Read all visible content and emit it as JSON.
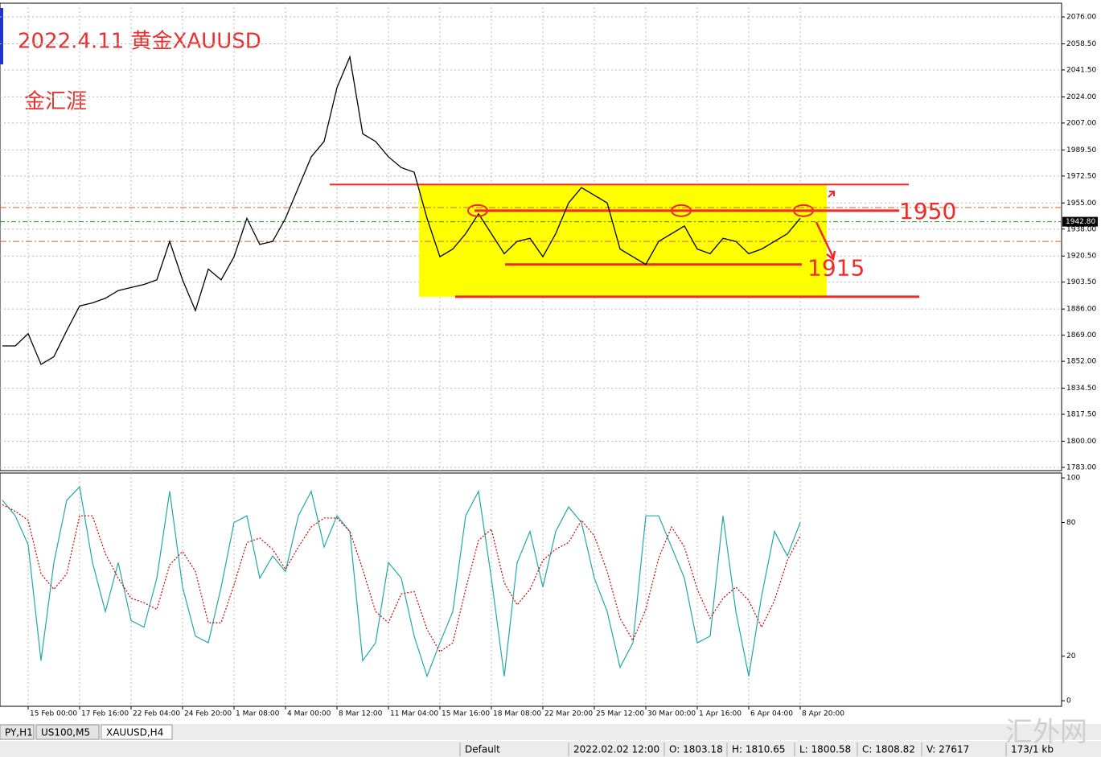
{
  "header": {
    "title": "2022.4.11 黄金XAUUSD",
    "author": "金汇涯"
  },
  "chart_data": {
    "type": "line",
    "categories": [
      null,
      null,
      "15 Feb 00:00",
      null,
      null,
      null,
      "17 Feb 16:00",
      null,
      null,
      null,
      "22 Feb 04:00",
      null,
      null,
      null,
      "24 Feb 20:00",
      null,
      null,
      null,
      "1 Mar 08:00",
      null,
      null,
      null,
      "4 Mar 00:00",
      null,
      null,
      null,
      "8 Mar 12:00",
      null,
      null,
      null,
      "11 Mar 04:00",
      null,
      null,
      null,
      "15 Mar 16:00",
      null,
      null,
      null,
      "18 Mar 08:00",
      null,
      null,
      null,
      "22 Mar 20:00",
      null,
      null,
      null,
      "25 Mar 12:00",
      null,
      null,
      null,
      "30 Mar 00:00",
      null,
      null,
      null,
      "1 Apr 16:00",
      null,
      null,
      null,
      "6 Apr 04:00",
      null,
      null,
      null,
      "8 Apr 20:00"
    ],
    "series": [
      {
        "color": "#000000",
        "values": [
          1862,
          1862,
          1870,
          1850,
          1855,
          1872,
          1888,
          1890,
          1893,
          1898,
          1900,
          1902,
          1905,
          1930,
          1905,
          1885,
          1912,
          1905,
          1920,
          1945,
          1928,
          1930,
          1945,
          1965,
          1985,
          1995,
          2030,
          2050,
          2000,
          1995,
          1985,
          1978,
          1975,
          1945,
          1920,
          1925,
          1935,
          1948,
          1935,
          1922,
          1930,
          1932,
          1920,
          1935,
          1955,
          1965,
          1960,
          1955,
          1925,
          1920,
          1915,
          1930,
          1935,
          1940,
          1925,
          1922,
          1932,
          1930,
          1922,
          1925,
          1930,
          1935,
          1945
        ]
      }
    ],
    "ylim": [
      1780.9,
      2084.4
    ],
    "yticks": [
      {
        "value": 2076,
        "label": "2076.00"
      },
      {
        "value": 2058.5,
        "label": "2058.50"
      },
      {
        "value": 2041.5,
        "label": "2041.50"
      },
      {
        "value": 2024,
        "label": "2024.00"
      },
      {
        "value": 2007,
        "label": "2007.00"
      },
      {
        "value": 1989.5,
        "label": "1989.50"
      },
      {
        "value": 1972.5,
        "label": "1972.50"
      },
      {
        "value": 1955,
        "label": "1955.00"
      },
      {
        "value": 1938,
        "label": "1938.00"
      },
      {
        "value": 1920.5,
        "label": "1920.50"
      },
      {
        "value": 1903.5,
        "label": "1903.50"
      },
      {
        "value": 1886,
        "label": "1886.00"
      },
      {
        "value": 1869,
        "label": "1869.00"
      },
      {
        "value": 1852,
        "label": "1852.00"
      },
      {
        "value": 1834.5,
        "label": "1834.50"
      },
      {
        "value": 1817.5,
        "label": "1817.50"
      },
      {
        "value": 1800,
        "label": "1800.00"
      },
      {
        "value": 1783,
        "label": "1783.00"
      }
    ],
    "grid": true,
    "current_price": {
      "value": 1942.8,
      "label": "1942.80"
    },
    "range_top": 1967,
    "range_bottom": 1894,
    "resistance": 1950,
    "support": 1915,
    "dashed_levels": [
      1952,
      1930
    ],
    "range_color": "#ffff00",
    "level_color": "#ee2b2b",
    "indicator": {
      "type": "line",
      "ylim": [
        -2.5,
        102.2
      ],
      "yticks": [
        100,
        80,
        20,
        0
      ],
      "series": [
        {
          "color": "#20a8a8",
          "values": [
            90,
            83,
            70,
            18,
            62,
            90,
            96,
            62,
            40,
            62,
            36,
            33,
            55,
            94,
            51,
            29,
            26,
            51,
            80,
            83,
            55,
            65,
            58,
            83,
            94,
            69,
            83,
            76,
            18,
            26,
            62,
            55,
            29,
            11,
            26,
            40,
            83,
            94,
            55,
            11,
            62,
            76,
            51,
            76,
            87,
            80,
            55,
            40,
            15,
            26,
            83,
            83,
            69,
            55,
            26,
            29,
            83,
            40,
            11,
            47,
            76,
            65,
            80
          ]
        },
        {
          "color": "#d00000",
          "dashed": true,
          "values": [
            88,
            85,
            81,
            57,
            50,
            57,
            83,
            83,
            66,
            55,
            46,
            44,
            41,
            61,
            67,
            58,
            35,
            35,
            52,
            71,
            73,
            68,
            59,
            69,
            78,
            82,
            82,
            76,
            59,
            40,
            35,
            48,
            49,
            32,
            22,
            26,
            50,
            72,
            77,
            53,
            43,
            50,
            63,
            68,
            71,
            81,
            74,
            58,
            37,
            27,
            41,
            64,
            78,
            69,
            50,
            37,
            46,
            51,
            45,
            33,
            45,
            63,
            74
          ]
        }
      ]
    }
  },
  "tabs": [
    "PY,H1",
    "US100,M5",
    "XAUUSD,H4"
  ],
  "status_bar": [
    "Default",
    "2022.02.02 12:00",
    "O: 1803.18",
    "H: 1810.65",
    "L: 1800.58",
    "C: 1808.82",
    "V: 27617",
    "173/1 kb"
  ],
  "watermark": "汇外网"
}
